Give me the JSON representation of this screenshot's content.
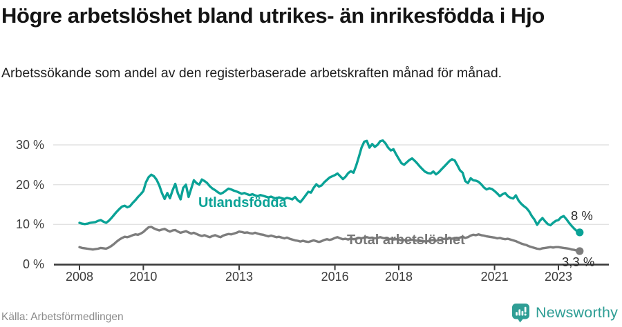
{
  "colors": {
    "foreign": "#0aa296",
    "total": "#7d7d7d",
    "total_label": "#767676",
    "axis": "#3a3a3a",
    "grid": "#e2e2e2",
    "brand": "#2f9e95"
  },
  "footer": {
    "source": "Källa: Arbetsförmedlingen",
    "brand": "Newsworthy"
  },
  "icons": {
    "brand_icon": "newsworthy-speech-bubble-bar-chart"
  },
  "chart_data": {
    "type": "line",
    "title": "Högre arbetslöshet bland utrikes- än inrikesfödda i Hjo",
    "subtitle": "Arbetssökande som andel av den registerbaserade arbetskraften månad för månad.",
    "x_start": 2008.0,
    "x_step_months": 1,
    "xlim": [
      2007.75,
      2024.1
    ],
    "ylim": [
      0,
      33.5
    ],
    "grid": "horizontal",
    "legend_position": "inline-labels",
    "x_ticks": [
      {
        "label": "2008",
        "year": 2008
      },
      {
        "label": "2010",
        "year": 2010
      },
      {
        "label": "2013",
        "year": 2013
      },
      {
        "label": "2016",
        "year": 2016
      },
      {
        "label": "2018",
        "year": 2018
      },
      {
        "label": "2021",
        "year": 2021
      },
      {
        "label": "2023",
        "year": 2023
      }
    ],
    "y_ticks": [
      {
        "label": "0 %",
        "value": 0
      },
      {
        "label": "10 %",
        "value": 10
      },
      {
        "label": "20 %",
        "value": 20
      },
      {
        "label": "30 %",
        "value": 30
      }
    ],
    "series": [
      {
        "name": "Utlandsfödda",
        "color": "#0aa296",
        "end_label": "8 %",
        "values": [
          10.4,
          10.2,
          10.1,
          10.2,
          10.4,
          10.5,
          10.6,
          10.9,
          11.1,
          10.7,
          10.4,
          10.9,
          11.6,
          12.4,
          13.2,
          13.9,
          14.5,
          14.7,
          14.3,
          14.6,
          15.4,
          16.1,
          16.9,
          17.6,
          18.4,
          20.6,
          21.9,
          22.5,
          22.1,
          21.2,
          19.8,
          17.9,
          16.4,
          17.9,
          16.6,
          18.6,
          20.2,
          17.8,
          16.3,
          19.2,
          20.0,
          16.9,
          19.0,
          21.1,
          20.4,
          20.0,
          21.3,
          20.9,
          20.4,
          19.6,
          19.0,
          18.6,
          18.1,
          17.7,
          18.0,
          18.5,
          19.0,
          18.8,
          18.5,
          18.3,
          18.0,
          17.7,
          17.9,
          17.6,
          17.4,
          17.6,
          17.3,
          17.1,
          17.4,
          17.2,
          17.0,
          16.8,
          17.0,
          16.7,
          16.5,
          16.8,
          16.6,
          16.4,
          16.7,
          16.5,
          16.3,
          16.9,
          16.1,
          15.6,
          16.4,
          17.3,
          18.2,
          18.0,
          19.2,
          20.1,
          19.5,
          19.8,
          20.6,
          21.2,
          21.8,
          22.1,
          22.4,
          22.8,
          22.1,
          21.4,
          22.0,
          22.9,
          23.4,
          23.0,
          24.8,
          27.0,
          29.3,
          30.8,
          31.0,
          29.3,
          30.2,
          29.5,
          30.0,
          30.9,
          31.1,
          30.4,
          29.3,
          28.6,
          28.9,
          27.6,
          26.5,
          25.4,
          25.0,
          25.6,
          26.2,
          26.6,
          26.0,
          25.3,
          24.5,
          23.8,
          23.2,
          22.9,
          22.8,
          23.3,
          22.6,
          23.1,
          23.8,
          24.5,
          25.2,
          25.9,
          26.4,
          26.1,
          24.9,
          23.6,
          23.0,
          20.9,
          20.4,
          21.6,
          21.1,
          21.0,
          20.7,
          20.1,
          19.3,
          18.8,
          19.1,
          18.9,
          18.4,
          17.8,
          17.1,
          17.6,
          17.9,
          17.1,
          16.7,
          16.5,
          17.3,
          16.0,
          15.2,
          14.6,
          14.1,
          13.3,
          12.1,
          11.2,
          9.9,
          10.9,
          11.6,
          10.8,
          10.1,
          9.8,
          10.4,
          10.9,
          11.1,
          11.8,
          12.1,
          11.3,
          10.4,
          9.6,
          8.9,
          8.3,
          8.0
        ]
      },
      {
        "name": "Total arbetslöshet",
        "color": "#7d7d7d",
        "end_label": "3,3 %",
        "values": [
          4.3,
          4.1,
          4.0,
          3.9,
          3.8,
          3.7,
          3.8,
          3.9,
          4.1,
          4.0,
          3.9,
          4.2,
          4.6,
          5.1,
          5.7,
          6.2,
          6.6,
          6.9,
          6.8,
          7.0,
          7.3,
          7.5,
          7.4,
          7.7,
          8.1,
          8.7,
          9.3,
          9.4,
          9.0,
          8.7,
          8.5,
          8.7,
          8.9,
          8.5,
          8.2,
          8.5,
          8.6,
          8.2,
          7.9,
          8.1,
          8.3,
          8.0,
          7.7,
          7.9,
          7.6,
          7.3,
          7.1,
          7.3,
          7.0,
          6.8,
          7.1,
          7.3,
          7.0,
          6.8,
          7.2,
          7.4,
          7.6,
          7.5,
          7.7,
          7.9,
          8.2,
          8.1,
          7.9,
          8.0,
          7.8,
          7.7,
          7.9,
          7.7,
          7.5,
          7.4,
          7.2,
          7.0,
          7.2,
          7.0,
          6.8,
          6.9,
          6.7,
          6.5,
          6.7,
          6.4,
          6.2,
          6.0,
          5.9,
          5.7,
          5.9,
          5.7,
          5.6,
          5.8,
          6.0,
          5.8,
          5.6,
          5.8,
          6.1,
          6.3,
          6.1,
          6.3,
          6.6,
          6.8,
          6.5,
          6.3,
          6.4,
          6.2,
          6.5,
          6.3,
          6.4,
          6.6,
          6.5,
          6.7,
          6.8,
          6.6,
          6.7,
          6.5,
          6.6,
          6.8,
          6.6,
          6.5,
          6.3,
          6.4,
          6.2,
          6.3,
          6.2,
          6.0,
          6.1,
          5.9,
          6.0,
          6.2,
          6.0,
          5.9,
          5.8,
          5.9,
          5.7,
          5.8,
          6.0,
          6.1,
          5.9,
          6.0,
          6.2,
          6.4,
          6.3,
          6.5,
          6.4,
          6.6,
          6.5,
          6.7,
          6.9,
          6.6,
          6.8,
          7.2,
          7.4,
          7.3,
          7.5,
          7.3,
          7.2,
          7.0,
          6.9,
          6.8,
          6.7,
          6.5,
          6.6,
          6.4,
          6.3,
          6.4,
          6.2,
          6.0,
          5.8,
          5.5,
          5.2,
          5.0,
          4.8,
          4.5,
          4.3,
          4.1,
          3.9,
          3.8,
          4.0,
          4.1,
          4.2,
          4.3,
          4.2,
          4.3,
          4.3,
          4.2,
          4.1,
          4.0,
          3.9,
          3.7,
          3.6,
          3.4,
          3.3
        ]
      }
    ]
  }
}
